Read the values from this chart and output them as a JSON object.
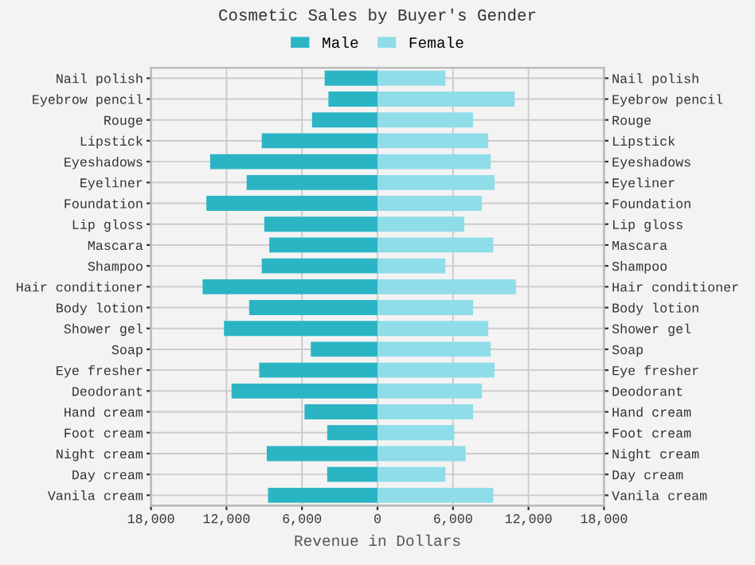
{
  "chart_data": {
    "type": "bar",
    "orientation": "horizontal",
    "title": "Cosmetic Sales by Buyer's Gender",
    "xlabel": "Revenue in Dollars",
    "categories": [
      "Nail polish",
      "Eyebrow pencil",
      "Rouge",
      "Lipstick",
      "Eyeshadows",
      "Eyeliner",
      "Foundation",
      "Lip gloss",
      "Mascara",
      "Shampoo",
      "Hair conditioner",
      "Body lotion",
      "Shower gel",
      "Soap",
      "Eye fresher",
      "Deodorant",
      "Hand cream",
      "Foot cream",
      "Night cream",
      "Day cream",
      "Vanila cream"
    ],
    "series": [
      {
        "name": "Male",
        "color": "#2bb5c4",
        "values": [
          -4200,
          -3900,
          -5200,
          -9200,
          -13300,
          -10400,
          -13600,
          -9000,
          -8600,
          -9200,
          -13900,
          -10200,
          -12200,
          -5300,
          -9400,
          -11600,
          -5800,
          -4000,
          -8800,
          -4000,
          -8700
        ]
      },
      {
        "name": "Female",
        "color": "#8fdde8",
        "values": [
          5400,
          10900,
          7600,
          8800,
          9000,
          9300,
          8300,
          6900,
          9200,
          5400,
          11000,
          7600,
          8800,
          9000,
          9300,
          8300,
          7600,
          6100,
          7000,
          5400,
          9200
        ]
      }
    ],
    "xlim": [
      -18000,
      18000
    ],
    "xticks": [
      {
        "value": -18000,
        "label": "18,000"
      },
      {
        "value": -12000,
        "label": "12,000"
      },
      {
        "value": -6000,
        "label": "6,000"
      },
      0,
      {
        "value": 6000,
        "label": "6,000"
      },
      {
        "value": 12000,
        "label": "12,000"
      },
      {
        "value": 18000,
        "label": "18,000"
      }
    ],
    "grid": true,
    "legend": "top",
    "stacked": true
  }
}
